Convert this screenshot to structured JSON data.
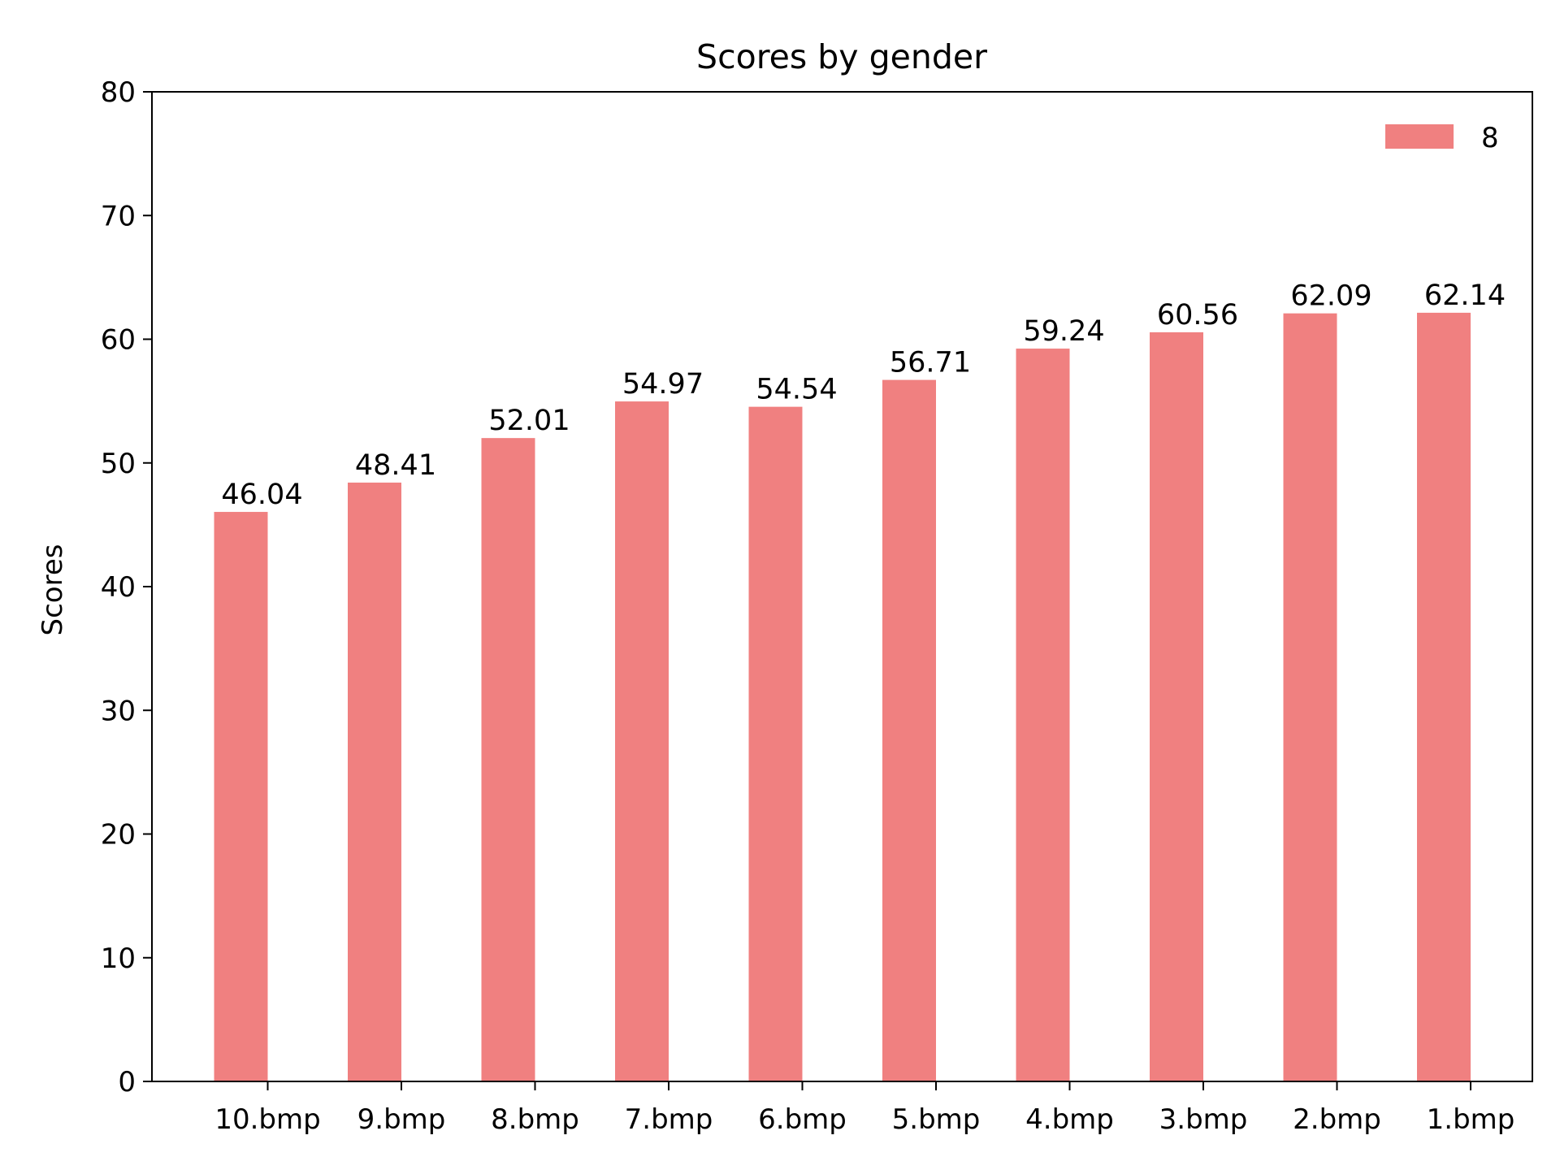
{
  "chart_data": {
    "type": "bar",
    "title": "Scores by gender",
    "xlabel": "",
    "ylabel": "Scores",
    "categories": [
      "10.bmp",
      "9.bmp",
      "8.bmp",
      "7.bmp",
      "6.bmp",
      "5.bmp",
      "4.bmp",
      "3.bmp",
      "2.bmp",
      "1.bmp"
    ],
    "series": [
      {
        "name": "8",
        "color": "#f08080",
        "values": [
          46.04,
          48.41,
          52.01,
          54.97,
          54.54,
          56.71,
          59.24,
          60.56,
          62.09,
          62.14
        ],
        "labels": [
          "46.04",
          "48.41",
          "52.01",
          "54.97",
          "54.54",
          "56.71",
          "59.24",
          "60.56",
          "62.09",
          "62.14"
        ]
      }
    ],
    "ylim": [
      0,
      80
    ],
    "yticks": [
      0,
      10,
      20,
      30,
      40,
      50,
      60,
      70,
      80
    ],
    "grid": false,
    "legend_position": "top-right"
  }
}
